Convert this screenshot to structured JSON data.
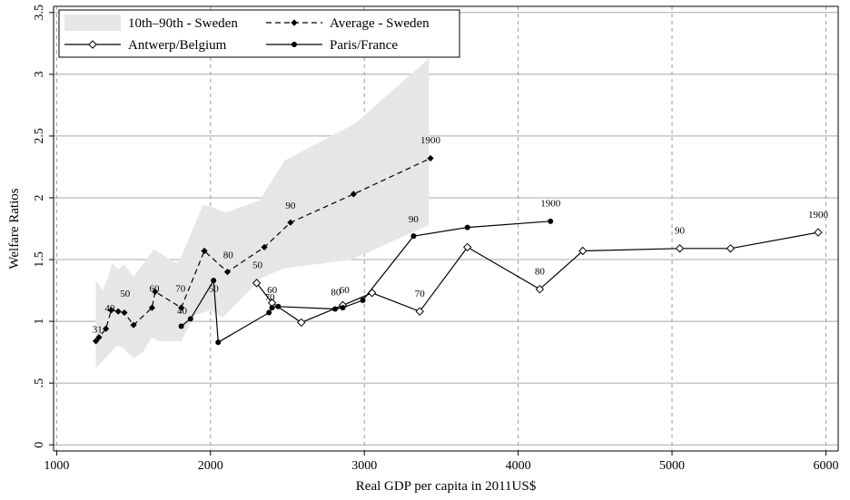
{
  "chart_data": {
    "type": "line",
    "title": "",
    "xlabel": "Real GDP per capita in 2011US$",
    "ylabel": "Welfare Ratios",
    "xlim": [
      980,
      6080
    ],
    "ylim": [
      -0.05,
      3.55
    ],
    "xticks": [
      1000,
      2000,
      3000,
      4000,
      5000,
      6000
    ],
    "xtick_labels": [
      "1000",
      "2000",
      "3000",
      "4000",
      "5000",
      "6000"
    ],
    "yticks": [
      0,
      0.5,
      1,
      1.5,
      2,
      2.5,
      3,
      3.5
    ],
    "ytick_labels": [
      "0",
      ".5",
      "1",
      "1.5",
      "2",
      "2.5",
      "3",
      "3.5"
    ],
    "grid": {
      "horizontal": true,
      "horizontal_style": "solid",
      "vertical": true,
      "vertical_style": "dashed"
    },
    "legend": {
      "placement": "top-left",
      "entries": [
        {
          "label": "10th–90th - Sweden",
          "series": "band"
        },
        {
          "label": "Average - Sweden",
          "series": "sweden"
        },
        {
          "label": "Antwerp/Belgium",
          "series": "antwerp"
        },
        {
          "label": "Paris/France",
          "series": "paris"
        }
      ]
    },
    "band": {
      "name": "10th–90th - Sweden",
      "color": "#e6e6e6",
      "upper": [
        {
          "x": 1255,
          "y": 1.33
        },
        {
          "x": 1300,
          "y": 1.25
        },
        {
          "x": 1340,
          "y": 1.38
        },
        {
          "x": 1360,
          "y": 1.47
        },
        {
          "x": 1400,
          "y": 1.42
        },
        {
          "x": 1440,
          "y": 1.46
        },
        {
          "x": 1500,
          "y": 1.36
        },
        {
          "x": 1560,
          "y": 1.46
        },
        {
          "x": 1630,
          "y": 1.58
        },
        {
          "x": 1660,
          "y": 1.56
        },
        {
          "x": 1780,
          "y": 1.47
        },
        {
          "x": 1810,
          "y": 1.52
        },
        {
          "x": 1950,
          "y": 1.94
        },
        {
          "x": 2000,
          "y": 1.93
        },
        {
          "x": 2100,
          "y": 1.88
        },
        {
          "x": 2320,
          "y": 1.98
        },
        {
          "x": 2480,
          "y": 2.3
        },
        {
          "x": 2940,
          "y": 2.6
        },
        {
          "x": 3420,
          "y": 3.13
        }
      ],
      "lower": [
        {
          "x": 3420,
          "y": 1.78
        },
        {
          "x": 2920,
          "y": 1.5
        },
        {
          "x": 2480,
          "y": 1.43
        },
        {
          "x": 2330,
          "y": 1.35
        },
        {
          "x": 2120,
          "y": 1.08
        },
        {
          "x": 2080,
          "y": 1.03
        },
        {
          "x": 2000,
          "y": 1.09
        },
        {
          "x": 1900,
          "y": 1.05
        },
        {
          "x": 1810,
          "y": 0.84
        },
        {
          "x": 1660,
          "y": 0.84
        },
        {
          "x": 1620,
          "y": 0.87
        },
        {
          "x": 1560,
          "y": 0.75
        },
        {
          "x": 1500,
          "y": 0.7
        },
        {
          "x": 1430,
          "y": 0.79
        },
        {
          "x": 1390,
          "y": 0.8
        },
        {
          "x": 1340,
          "y": 0.73
        },
        {
          "x": 1300,
          "y": 0.68
        },
        {
          "x": 1255,
          "y": 0.62
        }
      ]
    },
    "series": [
      {
        "id": "sweden",
        "name": "Average - Sweden",
        "color": "#000000",
        "line_style": "dashed",
        "marker": "diamond-filled",
        "points": [
          {
            "x": 1255,
            "y": 0.84
          },
          {
            "x": 1275,
            "y": 0.87
          },
          {
            "x": 1320,
            "y": 0.94
          },
          {
            "x": 1355,
            "y": 1.09
          },
          {
            "x": 1400,
            "y": 1.08
          },
          {
            "x": 1440,
            "y": 1.07
          },
          {
            "x": 1500,
            "y": 0.97
          },
          {
            "x": 1620,
            "y": 1.11
          },
          {
            "x": 1640,
            "y": 1.24
          },
          {
            "x": 1810,
            "y": 1.11
          },
          {
            "x": 1960,
            "y": 1.57
          },
          {
            "x": 2110,
            "y": 1.4
          },
          {
            "x": 2350,
            "y": 1.6
          },
          {
            "x": 2520,
            "y": 1.8
          },
          {
            "x": 2930,
            "y": 2.03
          },
          {
            "x": 3430,
            "y": 2.32
          }
        ]
      },
      {
        "id": "antwerp",
        "name": "Antwerp/Belgium",
        "color": "#000000",
        "line_style": "solid",
        "marker": "diamond-open",
        "points": [
          {
            "x": 2300,
            "y": 1.31
          },
          {
            "x": 2400,
            "y": 1.15
          },
          {
            "x": 2590,
            "y": 0.99
          },
          {
            "x": 2860,
            "y": 1.13
          },
          {
            "x": 3050,
            "y": 1.23
          },
          {
            "x": 3360,
            "y": 1.08
          },
          {
            "x": 3670,
            "y": 1.6
          },
          {
            "x": 4140,
            "y": 1.26
          },
          {
            "x": 4420,
            "y": 1.57
          },
          {
            "x": 5050,
            "y": 1.59
          },
          {
            "x": 5380,
            "y": 1.59
          },
          {
            "x": 5950,
            "y": 1.72
          }
        ]
      },
      {
        "id": "paris",
        "name": "Paris/France",
        "color": "#000000",
        "line_style": "solid",
        "marker": "circle-filled",
        "points": [
          {
            "x": 1810,
            "y": 0.96
          },
          {
            "x": 1870,
            "y": 1.02
          },
          {
            "x": 2020,
            "y": 1.33
          },
          {
            "x": 2050,
            "y": 0.83
          },
          {
            "x": 2380,
            "y": 1.07
          },
          {
            "x": 2400,
            "y": 1.11
          },
          {
            "x": 2440,
            "y": 1.12
          },
          {
            "x": 2810,
            "y": 1.1
          },
          {
            "x": 2860,
            "y": 1.11
          },
          {
            "x": 2990,
            "y": 1.17
          },
          {
            "x": 3320,
            "y": 1.69
          },
          {
            "x": 3670,
            "y": 1.76
          },
          {
            "x": 4210,
            "y": 1.81
          }
        ]
      }
    ],
    "annotations": [
      {
        "text": "31",
        "x": 1265,
        "y": 0.91
      },
      {
        "text": "40",
        "x": 1345,
        "y": 1.08
      },
      {
        "text": "50",
        "x": 1445,
        "y": 1.2
      },
      {
        "text": "60",
        "x": 1635,
        "y": 1.24
      },
      {
        "text": "70",
        "x": 1805,
        "y": 1.24
      },
      {
        "text": "40",
        "x": 1815,
        "y": 1.06
      },
      {
        "text": "50",
        "x": 2020,
        "y": 1.24
      },
      {
        "text": "80",
        "x": 2115,
        "y": 1.51
      },
      {
        "text": "50",
        "x": 2305,
        "y": 1.43
      },
      {
        "text": "60",
        "x": 2400,
        "y": 1.23
      },
      {
        "text": "70",
        "x": 2385,
        "y": 1.17
      },
      {
        "text": "90",
        "x": 2520,
        "y": 1.91
      },
      {
        "text": "80",
        "x": 2815,
        "y": 1.21
      },
      {
        "text": "60",
        "x": 2870,
        "y": 1.23
      },
      {
        "text": "90",
        "x": 3320,
        "y": 1.8
      },
      {
        "text": "70",
        "x": 3360,
        "y": 1.2
      },
      {
        "text": "80",
        "x": 4140,
        "y": 1.38
      },
      {
        "text": "90",
        "x": 5050,
        "y": 1.71
      },
      {
        "text": "1900",
        "x": 3430,
        "y": 2.44
      },
      {
        "text": "1900",
        "x": 4210,
        "y": 1.93
      },
      {
        "text": "1900",
        "x": 5950,
        "y": 1.84
      }
    ]
  }
}
